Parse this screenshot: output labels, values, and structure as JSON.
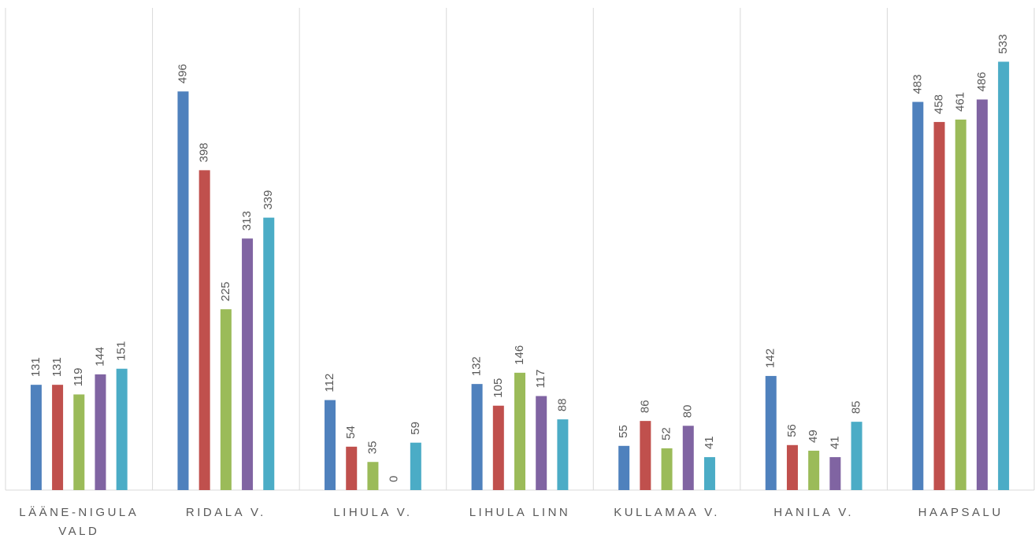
{
  "chart_data": {
    "type": "bar",
    "categories": [
      "LÄÄNE-NIGULA VALD",
      "RIDALA V.",
      "LIHULA V.",
      "LIHULA LINN",
      "KULLAMAA V.",
      "HANILA V.",
      "HAAPSALU"
    ],
    "series": [
      {
        "color": "#4f81bd",
        "values": [
          131,
          496,
          112,
          132,
          55,
          142,
          483
        ]
      },
      {
        "color": "#c0504d",
        "values": [
          131,
          398,
          54,
          105,
          86,
          56,
          458
        ]
      },
      {
        "color": "#9bbb59",
        "values": [
          119,
          225,
          35,
          146,
          52,
          49,
          461
        ]
      },
      {
        "color": "#8064a2",
        "values": [
          144,
          313,
          0,
          117,
          80,
          41,
          486
        ]
      },
      {
        "color": "#4bacc6",
        "values": [
          151,
          339,
          59,
          88,
          41,
          85,
          533
        ]
      }
    ],
    "ylim": [
      0,
      600
    ]
  }
}
